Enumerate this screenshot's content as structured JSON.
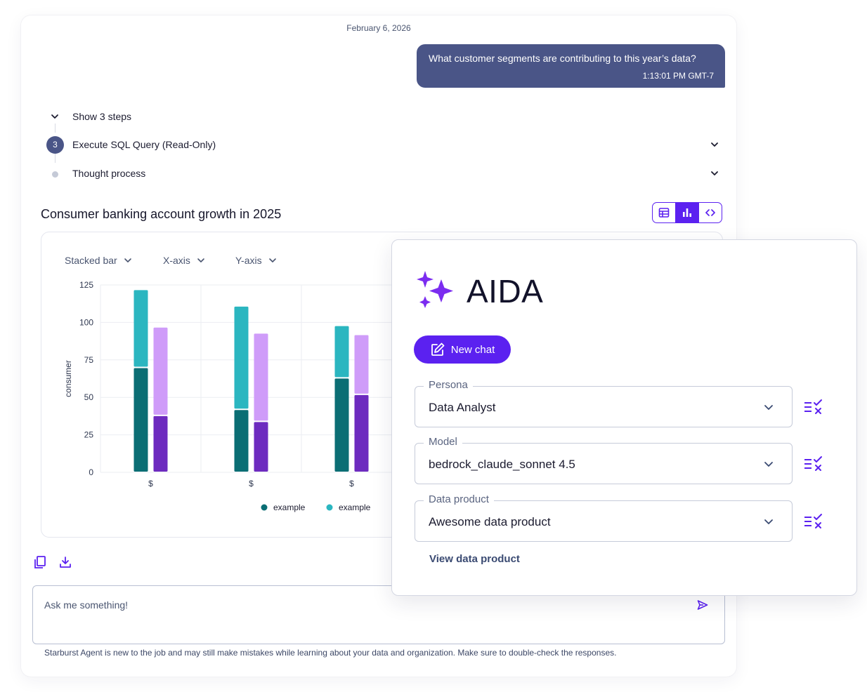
{
  "conversation": {
    "date": "February 6, 2026",
    "user_message": {
      "text": "What customer segments are contributing to this year’s data?",
      "timestamp": "1:13:01 PM GMT-7"
    },
    "steps": {
      "toggle_label": "Show 3 steps",
      "items": [
        {
          "number": "3",
          "label": "Execute SQL Query (Read-Only)"
        },
        {
          "label": "Thought process"
        }
      ]
    },
    "chart_title": "Consumer banking account growth in 2025",
    "view_modes": [
      "table-icon",
      "bar-chart-icon",
      "code-icon"
    ],
    "active_view": "bar-chart-icon",
    "chart_controls": {
      "chart_type": "Stacked bar",
      "x_axis": "X-axis",
      "y_axis": "Y-axis"
    },
    "actions": [
      "copy-icon",
      "download-icon"
    ],
    "input": {
      "placeholder": "Ask me something!"
    },
    "disclaimer": "Starburst Agent is new to the job and may still make mistakes while learning about your data and organization. Make sure to double-check the responses."
  },
  "chart_data": {
    "type": "bar",
    "stacked": true,
    "ylabel": "consumer",
    "ylim": [
      0,
      125
    ],
    "y_ticks": [
      0,
      25,
      50,
      75,
      100,
      125
    ],
    "categories": [
      "$",
      "$",
      "$"
    ],
    "grid": true,
    "legend_position": "bottom",
    "legend": [
      {
        "label": "example",
        "color": "#0b6e74"
      },
      {
        "label": "example",
        "color": "#2bb6c0"
      }
    ],
    "series": [
      {
        "stack": "a",
        "color": "#0b6e74",
        "values": [
          70,
          42,
          63
        ]
      },
      {
        "stack": "a",
        "color": "#2bb6c0",
        "values": [
          52,
          69,
          35
        ]
      },
      {
        "stack": "b",
        "color": "#6d2bbf",
        "values": [
          38,
          34,
          52
        ]
      },
      {
        "stack": "b",
        "color": "#cf9cf9",
        "values": [
          59,
          59,
          40
        ]
      }
    ]
  },
  "aida": {
    "title": "AIDA",
    "new_chat_label": "New chat",
    "fields": [
      {
        "label": "Persona",
        "value": "Data Analyst"
      },
      {
        "label": "Model",
        "value": "bedrock_claude_sonnet 4.5"
      },
      {
        "label": "Data product",
        "value": "Awesome data product"
      }
    ],
    "view_link": "View data product"
  },
  "colors": {
    "accent": "#5b21f0",
    "user_bubble": "#4a5587",
    "sparkle": "#7b2cf0"
  }
}
